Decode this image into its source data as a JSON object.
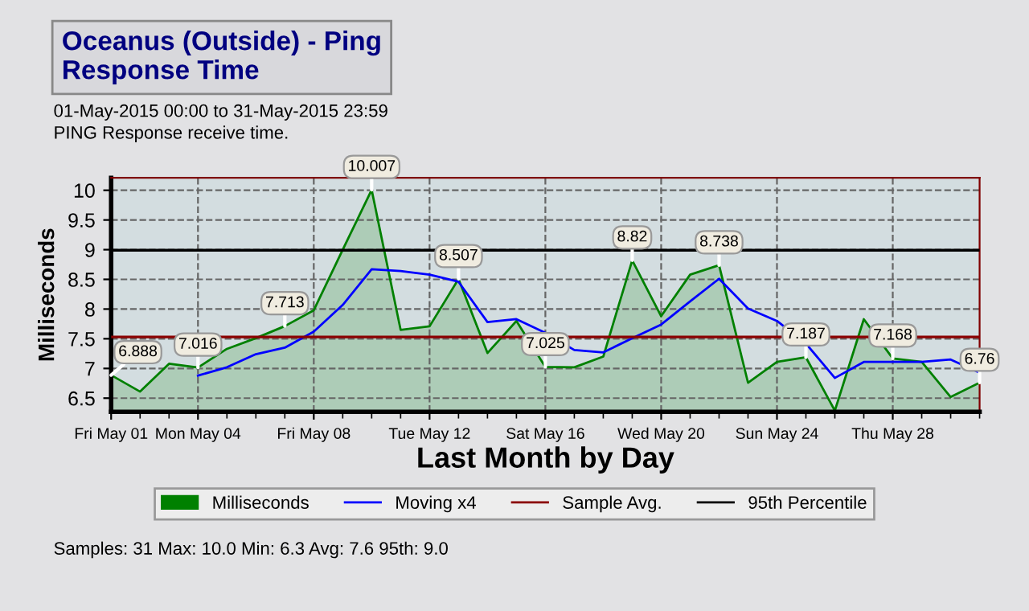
{
  "chart_data": {
    "type": "area",
    "title": "Oceanus (Outside) - Ping\nResponse Time",
    "subtitle": "01-May-2015 00:00 to 31-May-2015 23:59\nPING Response receive time.",
    "xlabel": "Last Month by Day",
    "ylabel": "Milliseconds",
    "categories": [
      "Fri May 01",
      null,
      null,
      "Mon May 04",
      null,
      null,
      null,
      "Fri May 08",
      null,
      null,
      null,
      "Tue May 12",
      null,
      null,
      null,
      "Sat May 16",
      null,
      null,
      null,
      "Wed May 20",
      null,
      null,
      null,
      "Sun May 24",
      null,
      null,
      null,
      "Thu May 28",
      null,
      null,
      null
    ],
    "series": [
      {
        "name": "Milliseconds",
        "color": "#008000",
        "values": [
          6.888,
          6.61,
          7.08,
          7.016,
          7.33,
          7.51,
          7.713,
          7.98,
          9.0,
          10.007,
          7.65,
          7.71,
          8.507,
          7.26,
          7.8,
          7.025,
          7.02,
          7.2,
          8.82,
          7.88,
          8.58,
          8.738,
          6.76,
          7.11,
          7.187,
          6.29,
          7.83,
          7.168,
          7.11,
          6.52,
          6.76
        ],
        "value_labels": [
          "6.888",
          null,
          null,
          "7.016",
          null,
          null,
          "7.713",
          null,
          null,
          "10.007",
          null,
          null,
          "8.507",
          null,
          null,
          "7.025",
          null,
          null,
          "8.82",
          null,
          null,
          "8.738",
          null,
          null,
          "7.187",
          null,
          null,
          "7.168",
          null,
          null,
          "6.76"
        ]
      },
      {
        "name": "Moving x4",
        "type": "line",
        "color": "#0000ff",
        "values": [
          null,
          null,
          null,
          6.88,
          7.02,
          7.24,
          7.35,
          7.62,
          8.07,
          8.67,
          8.64,
          8.58,
          8.46,
          7.78,
          7.83,
          7.6,
          7.31,
          7.27,
          7.51,
          7.74,
          8.13,
          8.51,
          8.01,
          7.8,
          7.42,
          6.84,
          7.11,
          7.11,
          7.11,
          7.15,
          6.93
        ]
      }
    ],
    "ref_lines": [
      {
        "axis": "y",
        "value": 7.53,
        "label": "Sample Avg.",
        "color": "#8b0000"
      },
      {
        "axis": "y",
        "value": 8.99,
        "label": "95th Percentile",
        "color": "#000000"
      }
    ],
    "ylim": [
      6.27,
      10.21
    ],
    "yticks": [
      6.5,
      7,
      7.5,
      8,
      8.5,
      9,
      9.5,
      10
    ],
    "grid": true,
    "legend": "bottom",
    "line_style": "solid",
    "annotations": [
      "Samples: 31 Max: 10.0 Min: 6.3 Avg: 7.6 95th: 9.0"
    ]
  }
}
